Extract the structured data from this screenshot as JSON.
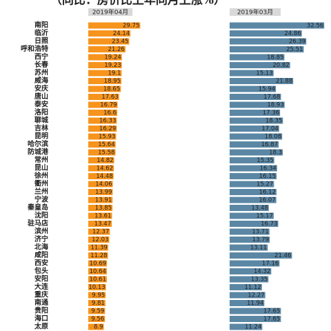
{
  "chart_data": {
    "type": "bar",
    "orientation": "horizontal",
    "title": "（同比：房价比上年同月上涨%）",
    "categories": [
      "南阳",
      "临沂",
      "日照",
      "呼和浩特",
      "西宁",
      "长春",
      "苏州",
      "威海",
      "安庆",
      "唐山",
      "泰安",
      "洛阳",
      "聊城",
      "吉林",
      "昆明",
      "哈尔滨",
      "防城港",
      "常州",
      "昆山",
      "徐州",
      "衢州",
      "兰州",
      "宁波",
      "秦皇岛",
      "沈阳",
      "驻马店",
      "滨州",
      "济宁",
      "北海",
      "咸阳",
      "西安",
      "包头",
      "安阳",
      "大连",
      "重庆",
      "南通",
      "贵阳",
      "海口",
      "太原"
    ],
    "series": [
      {
        "name": "2019年04月",
        "color": "#f7941d",
        "xlim": [
          0,
          30
        ],
        "values": [
          29.75,
          24.14,
          23.45,
          21.26,
          19.24,
          19.23,
          19.1,
          18.95,
          18.65,
          17.63,
          16.79,
          16.6,
          16.33,
          16.29,
          15.93,
          15.64,
          15.58,
          14.82,
          14.62,
          14.48,
          14.06,
          13.99,
          13.91,
          13.85,
          13.61,
          13.47,
          12.37,
          12.03,
          11.39,
          11.28,
          10.69,
          10.64,
          10.61,
          10.13,
          9.95,
          9.81,
          9.59,
          9.56,
          8.9
        ]
      },
      {
        "name": "2019年03月",
        "color": "#5b87a5",
        "xlim": [
          0,
          33
        ],
        "values": [
          32.56,
          24.86,
          26.39,
          25.51,
          18.85,
          20.82,
          15.13,
          21.88,
          15.94,
          17.68,
          18.93,
          17.36,
          18.35,
          17.04,
          18.08,
          16.87,
          18.3,
          15.35,
          16.34,
          16.15,
          15.27,
          16.12,
          16.07,
          13.48,
          15.17,
          16.73,
          13.71,
          13.79,
          13.11,
          21.46,
          17.16,
          14.32,
          13.35,
          11.12,
          12.27,
          11.94,
          17.65,
          17.65,
          11.24
        ]
      }
    ]
  }
}
